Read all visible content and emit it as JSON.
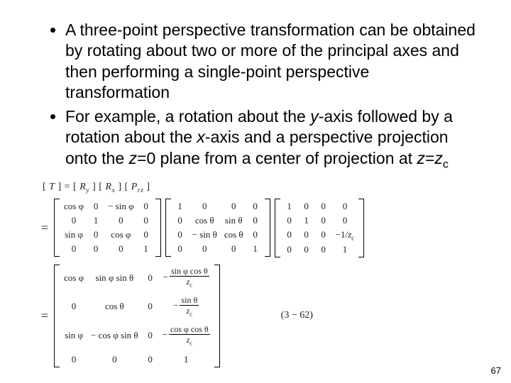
{
  "bullets": [
    {
      "pre": "A three-point perspective transformation can be obtained by rotating about two or more of the principal axes and then performing a single-point perspective transformation"
    },
    {
      "b2_p1": "For example, a rotation about the ",
      "b2_y": "y",
      "b2_p2": "-axis followed by a rotation about the ",
      "b2_x": "x",
      "b2_p3": "-axis and a perspective projection onto the ",
      "b2_z0": "z",
      "b2_p4": "=0 plane from a center of projection at ",
      "b2_z": "z",
      "b2_eq": "=",
      "b2_zc": "z",
      "b2_c": "c"
    }
  ],
  "eq": {
    "line1": "[ T ] = [ R_y ] [ R_x ] [ P_{rz} ]",
    "tag": "(3 − 62)"
  },
  "m1": {
    "r0": [
      "cos φ",
      "0",
      "− sin φ",
      "0"
    ],
    "r1": [
      "0",
      "1",
      "0",
      "0"
    ],
    "r2": [
      "sin φ",
      "0",
      "cos φ",
      "0"
    ],
    "r3": [
      "0",
      "0",
      "0",
      "1"
    ]
  },
  "m2": {
    "r0": [
      "1",
      "0",
      "0",
      "0"
    ],
    "r1": [
      "0",
      "cos θ",
      "sin θ",
      "0"
    ],
    "r2": [
      "0",
      "− sin θ",
      "cos θ",
      "0"
    ],
    "r3": [
      "0",
      "0",
      "0",
      "1"
    ]
  },
  "m3": {
    "r0": [
      "1",
      "0",
      "0",
      "0"
    ],
    "r1": [
      "0",
      "1",
      "0",
      "0"
    ],
    "r2_a": "0",
    "r2_b": "0",
    "r2_c": "0",
    "r2_d_num": "−1/",
    "r2_d": "−1/z_c",
    "r3": [
      "0",
      "0",
      "0",
      "1"
    ]
  },
  "m4": {
    "r0_a": "cos φ",
    "r0_b": "sin φ sin θ",
    "r0_c": "0",
    "r0_d_num": "sin φ cos θ",
    "r0_d_den": "z_c",
    "r1_a": "0",
    "r1_b": "cos θ",
    "r1_c": "0",
    "r1_d_num": "sin θ",
    "r1_d_den": "z_c",
    "r2_a": "sin φ",
    "r2_b": "− cos φ sin θ",
    "r2_c": "0",
    "r2_d_num": "cos φ cos θ",
    "r2_d_den": "z_c",
    "r3": [
      "0",
      "0",
      "0",
      "1"
    ]
  },
  "labels": {
    "minus1_over_zc_num": "−1",
    "zc": "z_c"
  },
  "page": "67"
}
